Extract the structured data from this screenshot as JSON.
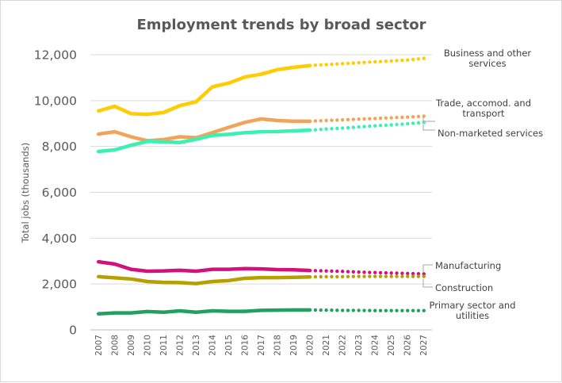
{
  "chart_data": {
    "type": "line",
    "title": "Employment trends by broad sector",
    "xlabel": "",
    "ylabel": "Total jobs (thousands)",
    "ylim": [
      0,
      12000
    ],
    "yticks": [
      0,
      2000,
      4000,
      6000,
      8000,
      10000,
      12000
    ],
    "ytick_labels": [
      "0",
      "2,000",
      "4,000",
      "6,000",
      "8,000",
      "10,000",
      "12,000"
    ],
    "grid": true,
    "x": [
      "2007",
      "2008",
      "2009",
      "2010",
      "2011",
      "2012",
      "2013",
      "2014",
      "2015",
      "2016",
      "2017",
      "2018",
      "2019",
      "2020",
      "2021",
      "2022",
      "2023",
      "2024",
      "2025",
      "2026",
      "2027"
    ],
    "actual_through": "2020",
    "projection_style": "dotted",
    "series": [
      {
        "name": "Business and other services",
        "label_lines": [
          "Business and other",
          "services"
        ],
        "color": "#ffcc00",
        "values": [
          9550,
          9750,
          9430,
          9400,
          9480,
          9780,
          9950,
          10600,
          10760,
          11030,
          11150,
          11350,
          11450,
          11530,
          11570,
          11610,
          11650,
          11690,
          11730,
          11770,
          11840
        ]
      },
      {
        "name": "Trade, accomod. and transport",
        "label_lines": [
          "Trade, accomod. and",
          "transport"
        ],
        "color": "#f0a45a",
        "values": [
          8540,
          8640,
          8420,
          8250,
          8300,
          8420,
          8380,
          8600,
          8830,
          9050,
          9200,
          9130,
          9100,
          9100,
          9130,
          9160,
          9190,
          9220,
          9250,
          9280,
          9320
        ]
      },
      {
        "name": "Non-marketed services",
        "label_lines": [
          "Non-marketed services"
        ],
        "color": "#3cf0b4",
        "values": [
          7780,
          7850,
          8050,
          8220,
          8200,
          8170,
          8310,
          8480,
          8530,
          8600,
          8640,
          8650,
          8680,
          8710,
          8760,
          8800,
          8850,
          8900,
          8940,
          8990,
          9050
        ]
      },
      {
        "name": "Manufacturing",
        "label_lines": [
          "Manufacturing"
        ],
        "color": "#d4107a",
        "values": [
          2970,
          2870,
          2640,
          2560,
          2570,
          2600,
          2560,
          2640,
          2640,
          2670,
          2660,
          2630,
          2620,
          2590,
          2570,
          2550,
          2520,
          2500,
          2480,
          2460,
          2440
        ]
      },
      {
        "name": "Construction",
        "label_lines": [
          "Construction"
        ],
        "color": "#b5a000",
        "values": [
          2320,
          2270,
          2220,
          2110,
          2070,
          2060,
          2020,
          2110,
          2150,
          2250,
          2280,
          2280,
          2290,
          2310,
          2320,
          2320,
          2330,
          2330,
          2330,
          2330,
          2330
        ]
      },
      {
        "name": "Primary sector and utilities",
        "label_lines": [
          "Primary sector and",
          "utilities"
        ],
        "color": "#22a060",
        "values": [
          700,
          740,
          740,
          800,
          770,
          830,
          770,
          830,
          810,
          810,
          850,
          860,
          870,
          870,
          860,
          850,
          850,
          840,
          840,
          840,
          840
        ]
      }
    ]
  }
}
